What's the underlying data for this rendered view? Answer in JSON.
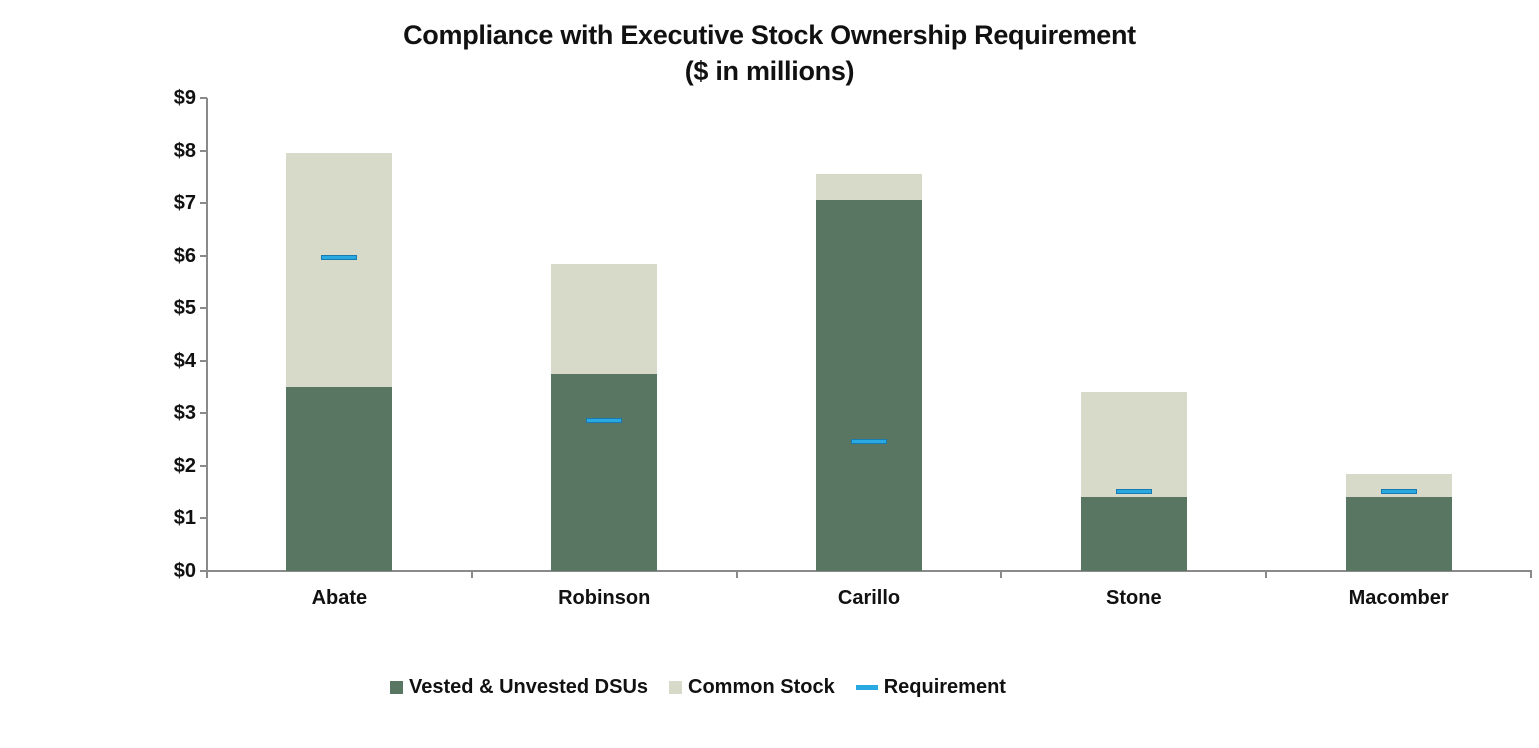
{
  "title": {
    "line1": "Compliance with Executive Stock Ownership Requirement",
    "line2": "($ in millions)"
  },
  "colors": {
    "axis": "#8a8a8a",
    "text": "#111111",
    "background": "#ffffff"
  },
  "chart_data": {
    "type": "bar",
    "stacked": true,
    "title": "Compliance with Executive Stock Ownership Requirement ($ in millions)",
    "xlabel": "",
    "ylabel": "",
    "categories": [
      "Abate",
      "Robinson",
      "Carillo",
      "Stone",
      "Macomber"
    ],
    "series": [
      {
        "name": "Vested & Unvested DSUs",
        "type": "bar",
        "color": "#587661",
        "values": [
          3.5,
          3.75,
          7.05,
          1.4,
          1.4
        ]
      },
      {
        "name": "Common Stock",
        "type": "bar",
        "color": "#d8dac9",
        "values": [
          4.45,
          2.1,
          0.5,
          2.0,
          0.45
        ]
      },
      {
        "name": "Requirement",
        "type": "dash-marker",
        "color": "#29a9e1",
        "border_color": "#1a7ab0",
        "values": [
          5.95,
          2.85,
          2.45,
          1.5,
          1.5
        ]
      }
    ],
    "stack_totals": [
      7.95,
      5.85,
      7.55,
      3.4,
      1.85
    ],
    "ylim": [
      0,
      9
    ],
    "ytick_step": 1,
    "ytick_labels": [
      "$0",
      "$1",
      "$2",
      "$3",
      "$4",
      "$5",
      "$6",
      "$7",
      "$8",
      "$9"
    ],
    "grid": false,
    "legend_position": "bottom"
  }
}
